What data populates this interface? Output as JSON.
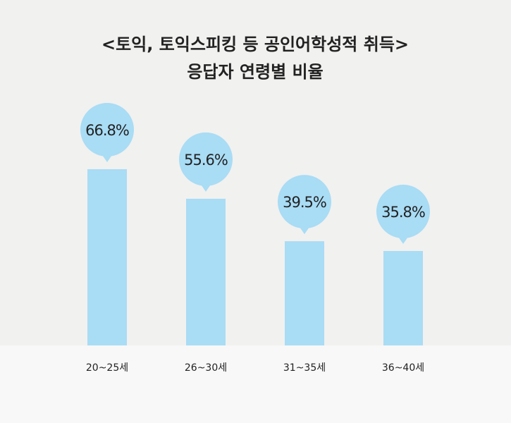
{
  "chart_data": {
    "type": "bar",
    "title": "<토익, 토익스피킹 등 공인어학성적 취득>",
    "subtitle": "응답자 연령별 비율",
    "categories": [
      "20~25세",
      "26~30세",
      "31~35세",
      "36~40세"
    ],
    "values": [
      66.8,
      55.6,
      39.5,
      35.8
    ],
    "value_labels": [
      "66.8%",
      "55.6%",
      "39.5%",
      "35.8%"
    ],
    "color": "#a9dcf5",
    "ylim": [
      0,
      70
    ]
  }
}
